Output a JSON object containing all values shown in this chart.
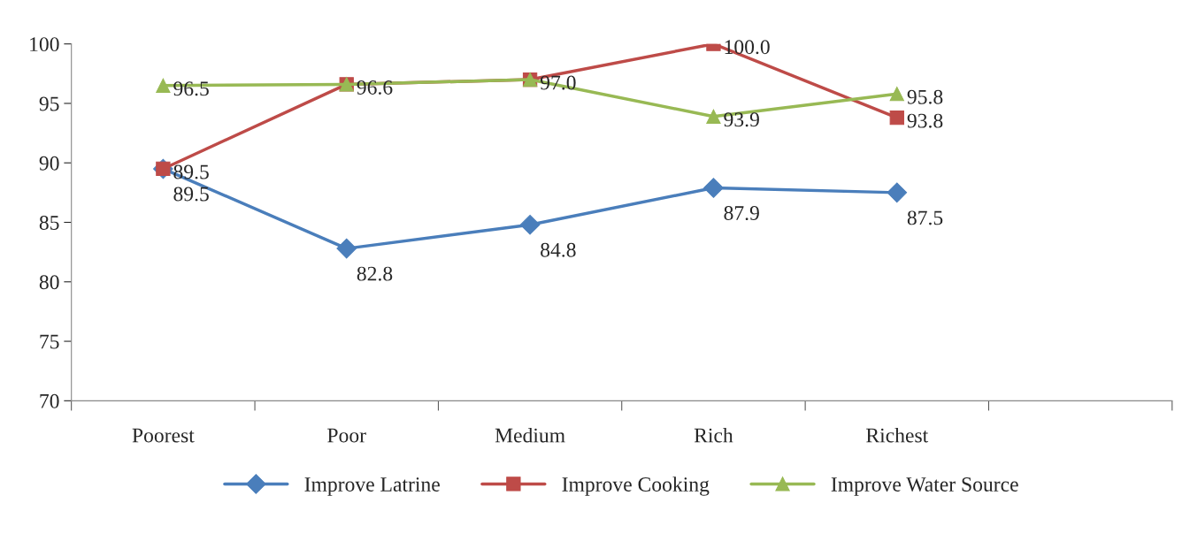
{
  "chart_data": {
    "type": "line",
    "categories": [
      "Poorest",
      "Poor",
      "Medium",
      "Rich",
      "Richest",
      null
    ],
    "series": [
      {
        "name": "Improve Latrine",
        "color": "#4a7ebb",
        "marker": "diamond",
        "values": [
          89.5,
          82.8,
          84.8,
          87.9,
          87.5,
          null
        ],
        "value_labels": [
          "89.5",
          "82.8",
          "84.8",
          "87.9",
          "87.5",
          null
        ]
      },
      {
        "name": "Improve Cooking",
        "color": "#be4b48",
        "marker": "square",
        "values": [
          89.5,
          96.6,
          97.0,
          100.0,
          93.8,
          null
        ],
        "value_labels": [
          "89.5",
          "96.6",
          "97.0",
          "100.0",
          "93.8",
          null
        ]
      },
      {
        "name": "Improve Water Source",
        "color": "#98b954",
        "marker": "triangle",
        "values": [
          96.5,
          96.6,
          97.0,
          93.9,
          95.8,
          null
        ],
        "value_labels": [
          "96.5",
          null,
          null,
          "93.9",
          "95.8",
          null
        ]
      }
    ],
    "ylim": [
      70,
      100
    ],
    "yticks": [
      70,
      75,
      80,
      85,
      90,
      95,
      100
    ],
    "grid": false,
    "legend": "bottom",
    "line_style": "solid"
  }
}
